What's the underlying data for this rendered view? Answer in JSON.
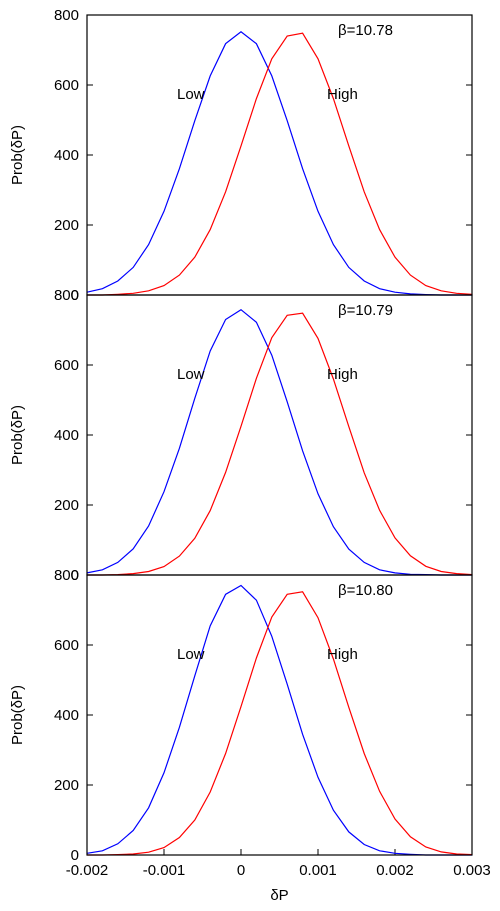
{
  "chart_data": [
    {
      "type": "line",
      "annotation": "β=10.78",
      "ylabel": "Prob(δP)",
      "x": [
        -0.002,
        -0.0018,
        -0.0016,
        -0.0014,
        -0.0012,
        -0.001,
        -0.0008,
        -0.0006,
        -0.0004,
        -0.0002,
        0,
        0.0002,
        0.0004,
        0.0006,
        0.0008,
        0.001,
        0.0012,
        0.0014,
        0.0016,
        0.0018,
        0.002,
        0.0022,
        0.0024,
        0.0026,
        0.0028,
        0.003
      ],
      "series": [
        {
          "name": "Low",
          "color": "#0000ff",
          "values": [
            8,
            18,
            40,
            79,
            144,
            239,
            361,
            498,
            626,
            718,
            752,
            718,
            626,
            498,
            361,
            239,
            144,
            79,
            40,
            18,
            8,
            3,
            1,
            0,
            0,
            0
          ]
        },
        {
          "name": "High",
          "color": "#ff0000",
          "values": [
            0,
            0,
            2,
            5,
            12,
            27,
            57,
            108,
            187,
            295,
            426,
            561,
            675,
            740,
            748,
            675,
            561,
            426,
            295,
            187,
            108,
            57,
            27,
            12,
            5,
            2
          ]
        }
      ],
      "xlim": [
        -0.002,
        0.003
      ],
      "ylim": [
        0,
        800
      ],
      "yticks": [
        0,
        200,
        400,
        600,
        800
      ]
    },
    {
      "type": "line",
      "annotation": "β=10.79",
      "ylabel": "Prob(δP)",
      "x": [
        -0.002,
        -0.0018,
        -0.0016,
        -0.0014,
        -0.0012,
        -0.001,
        -0.0008,
        -0.0006,
        -0.0004,
        -0.0002,
        0,
        0.0002,
        0.0004,
        0.0006,
        0.0008,
        0.001,
        0.0012,
        0.0014,
        0.0016,
        0.0018,
        0.002,
        0.0022,
        0.0024,
        0.0026,
        0.0028,
        0.003
      ],
      "series": [
        {
          "name": "Low",
          "color": "#0000ff",
          "values": [
            6,
            15,
            36,
            75,
            140,
            238,
            362,
            505,
            640,
            730,
            758,
            722,
            628,
            495,
            355,
            232,
            138,
            74,
            36,
            15,
            6,
            2,
            1,
            0,
            0,
            0
          ]
        },
        {
          "name": "High",
          "color": "#ff0000",
          "values": [
            0,
            0,
            1,
            4,
            10,
            24,
            54,
            105,
            184,
            293,
            425,
            562,
            678,
            742,
            748,
            676,
            560,
            424,
            292,
            185,
            106,
            55,
            25,
            10,
            4,
            1
          ]
        }
      ],
      "xlim": [
        -0.002,
        0.003
      ],
      "ylim": [
        0,
        800
      ],
      "yticks": [
        0,
        200,
        400,
        600,
        800
      ]
    },
    {
      "type": "line",
      "annotation": "β=10.80",
      "ylabel": "Prob(δP)",
      "xlabel": "δP",
      "x": [
        -0.002,
        -0.0018,
        -0.0016,
        -0.0014,
        -0.0012,
        -0.001,
        -0.0008,
        -0.0006,
        -0.0004,
        -0.0002,
        0,
        0.0002,
        0.0004,
        0.0006,
        0.0008,
        0.001,
        0.0012,
        0.0014,
        0.0016,
        0.0018,
        0.002,
        0.0022,
        0.0024,
        0.0026,
        0.0028,
        0.003
      ],
      "series": [
        {
          "name": "Low",
          "color": "#0000ff",
          "values": [
            5,
            12,
            32,
            70,
            135,
            235,
            365,
            512,
            655,
            745,
            770,
            728,
            625,
            488,
            345,
            222,
            128,
            66,
            30,
            12,
            5,
            2,
            0,
            0,
            0,
            0
          ]
        },
        {
          "name": "High",
          "color": "#ff0000",
          "values": [
            0,
            0,
            1,
            3,
            8,
            21,
            50,
            100,
            180,
            290,
            424,
            563,
            680,
            745,
            752,
            678,
            560,
            422,
            290,
            182,
            103,
            52,
            23,
            9,
            3,
            1
          ]
        }
      ],
      "xlim": [
        -0.002,
        0.003
      ],
      "ylim": [
        0,
        800
      ],
      "yticks": [
        0,
        200,
        400,
        600,
        800
      ],
      "xticks": [
        -0.002,
        -0.001,
        0,
        0.001,
        0.002,
        0.003
      ]
    }
  ]
}
